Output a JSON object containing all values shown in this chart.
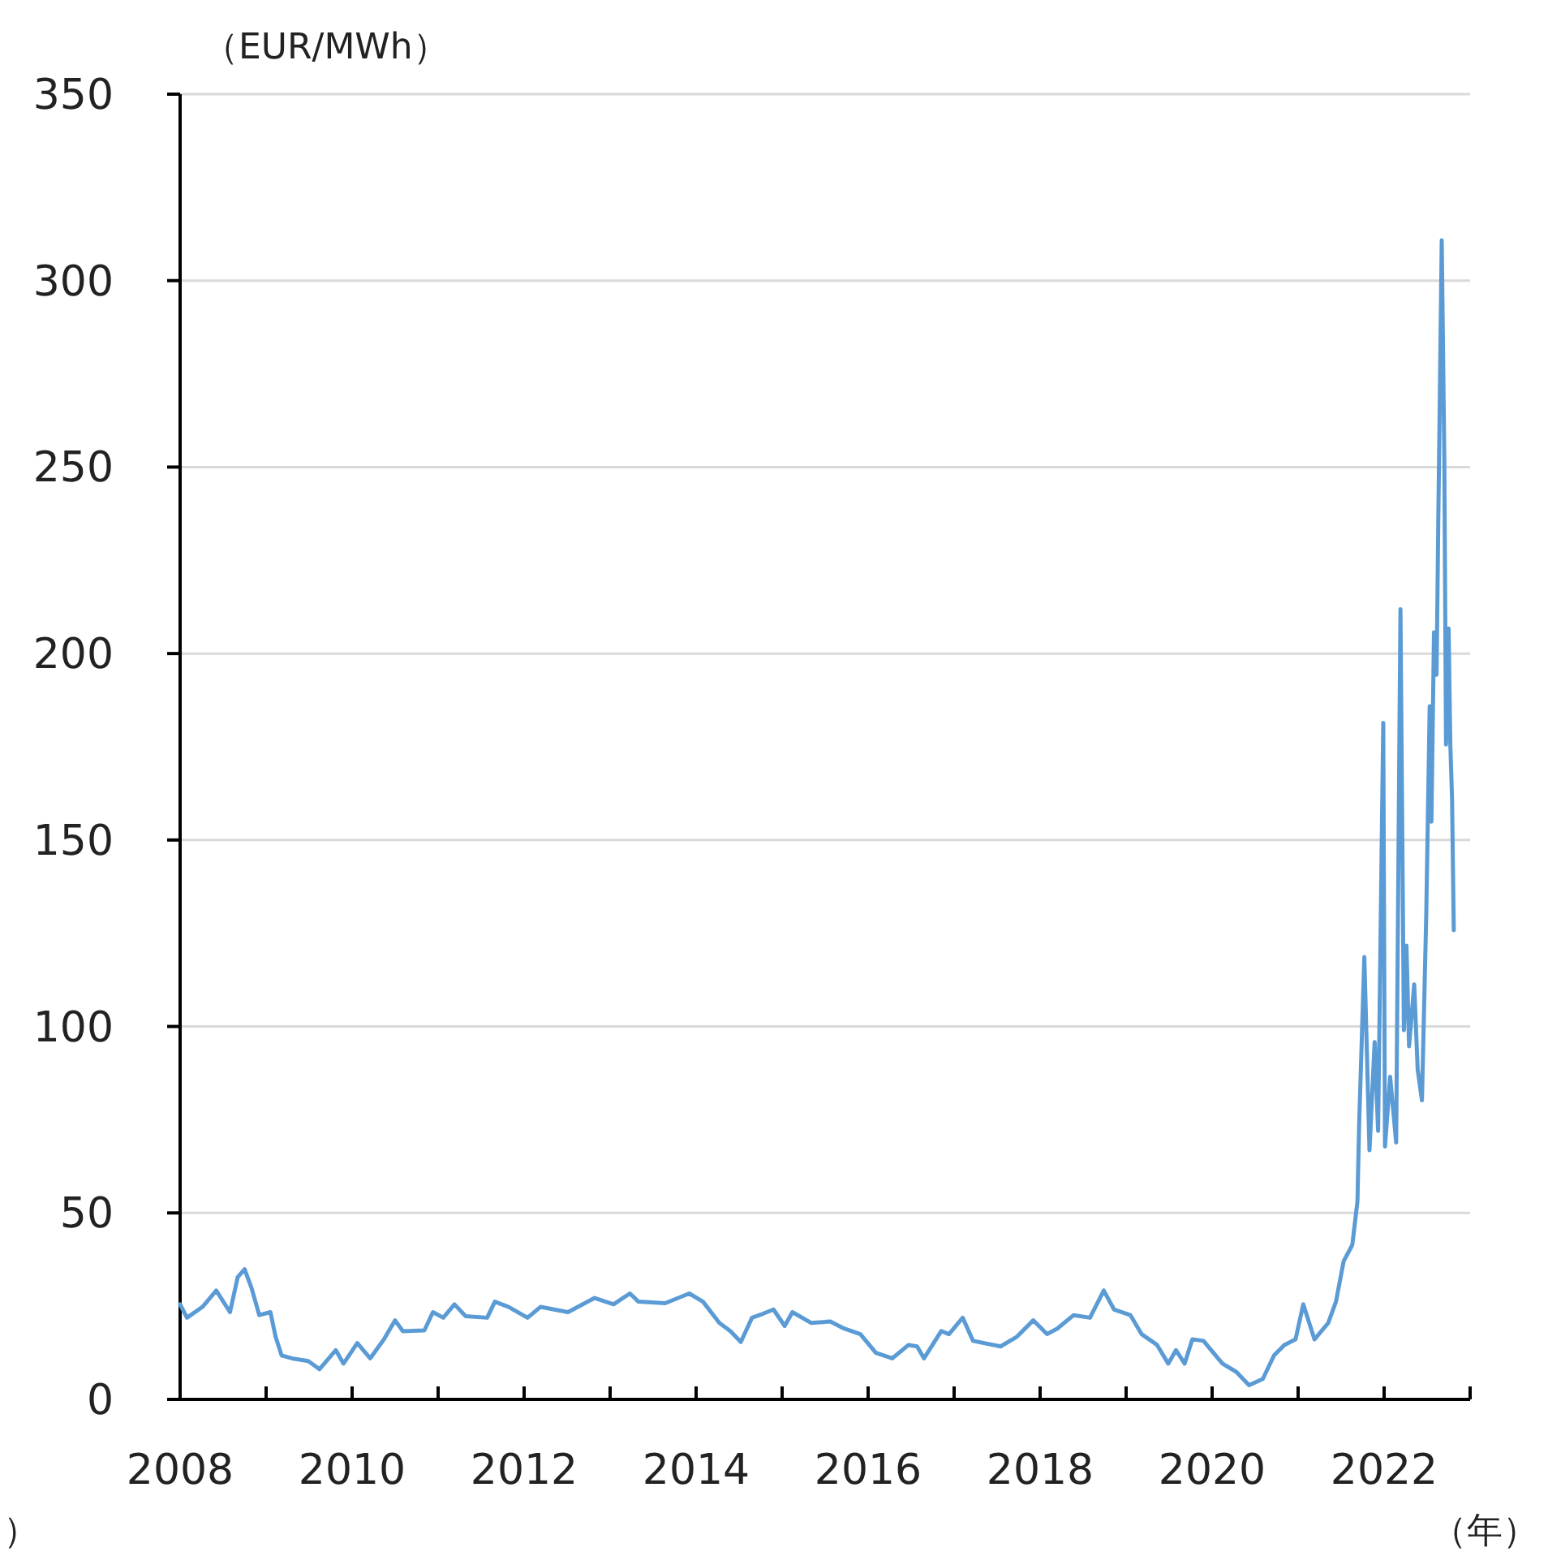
{
  "chart_data": {
    "type": "line",
    "ylabel": "（EUR/MWh）",
    "xlabel": "（年）",
    "annotations": [
      "）"
    ],
    "xlim": [
      2008,
      2023
    ],
    "xticks": [
      2008,
      {
        "value": 2009,
        "label": null
      },
      2010,
      {
        "value": 2011,
        "label": null
      },
      2012,
      {
        "value": 2013,
        "label": null
      },
      2014,
      {
        "value": 2015,
        "label": null
      },
      2016,
      {
        "value": 2017,
        "label": null
      },
      2018,
      {
        "value": 2019,
        "label": null
      },
      2020,
      {
        "value": 2021,
        "label": null
      },
      2022,
      {
        "value": 2023,
        "label": null
      }
    ],
    "ylim": [
      0,
      350
    ],
    "yticks": [
      0,
      50,
      100,
      150,
      200,
      250,
      300,
      350
    ],
    "grid": "y",
    "series": [
      {
        "color": "#5b9bd5",
        "x": [
          2008.0,
          2008.08,
          2008.26,
          2008.42,
          2008.58,
          2008.67,
          2008.75,
          2008.83,
          2008.92,
          2009.05,
          2009.11,
          2009.18,
          2009.3,
          2009.49,
          2009.62,
          2009.81,
          2009.9,
          2010.06,
          2010.21,
          2010.37,
          2010.5,
          2010.59,
          2010.84,
          2010.94,
          2011.06,
          2011.19,
          2011.32,
          2011.57,
          2011.66,
          2011.82,
          2012.04,
          2012.19,
          2012.51,
          2012.82,
          2013.04,
          2013.23,
          2013.33,
          2013.64,
          2013.92,
          2014.08,
          2014.27,
          2014.4,
          2014.52,
          2014.65,
          2014.77,
          2014.9,
          2015.03,
          2015.12,
          2015.34,
          2015.56,
          2015.72,
          2015.91,
          2016.09,
          2016.28,
          2016.47,
          2016.57,
          2016.65,
          2016.85,
          2016.94,
          2017.1,
          2017.22,
          2017.54,
          2017.73,
          2017.92,
          2018.08,
          2018.2,
          2018.39,
          2018.58,
          2018.74,
          2018.86,
          2019.05,
          2019.18,
          2019.36,
          2019.49,
          2019.58,
          2019.68,
          2019.77,
          2019.9,
          2019.99,
          2020.12,
          2020.28,
          2020.43,
          2020.59,
          2020.72,
          2020.84,
          2020.97,
          2021.06,
          2021.19,
          2021.35,
          2021.44,
          2021.53,
          2021.63,
          2021.69,
          2021.71,
          2021.77,
          2021.83,
          2021.89,
          2021.93,
          2021.99,
          2022.01,
          2022.07,
          2022.14,
          2022.19,
          2022.23,
          2022.26,
          2022.29,
          2022.35,
          2022.39,
          2022.44,
          2022.49,
          2022.53,
          2022.55,
          2022.58,
          2022.61,
          2022.63,
          2022.67,
          2022.7,
          2022.72,
          2022.75,
          2022.77,
          2022.79,
          2022.81
        ],
        "values": [
          25.5,
          21.9,
          24.8,
          29.2,
          23.4,
          32.8,
          34.9,
          29.9,
          22.6,
          23.4,
          16.8,
          11.8,
          11.0,
          10.3,
          8.1,
          13.2,
          9.6,
          15.1,
          11.0,
          16.1,
          21.2,
          18.3,
          18.5,
          23.4,
          21.9,
          25.5,
          22.3,
          21.9,
          26.2,
          24.8,
          21.9,
          24.8,
          23.4,
          27.2,
          25.5,
          28.4,
          26.2,
          25.8,
          28.4,
          26.2,
          20.5,
          18.3,
          15.4,
          21.9,
          22.9,
          24.1,
          19.7,
          23.4,
          20.5,
          20.9,
          19.0,
          17.5,
          12.5,
          11.0,
          14.6,
          14.2,
          11.0,
          18.3,
          17.5,
          21.9,
          15.7,
          14.2,
          16.8,
          21.2,
          17.5,
          19.0,
          22.6,
          21.9,
          29.2,
          24.1,
          22.6,
          17.5,
          14.6,
          9.6,
          13.2,
          9.6,
          16.1,
          15.7,
          13.2,
          9.6,
          7.4,
          3.8,
          5.5,
          11.8,
          14.6,
          16.1,
          25.5,
          16.1,
          20.5,
          26.2,
          37.1,
          41.4,
          53.1,
          74.0,
          118.6,
          66.8,
          95.8,
          72.0,
          181.4,
          67.8,
          86.5,
          68.9,
          211.9,
          99.0,
          121.7,
          94.7,
          111.3,
          88.5,
          80.2,
          130.0,
          185.9,
          154.9,
          205.7,
          194.3,
          235.7,
          310.8,
          252.3,
          175.6,
          206.7,
          175.6,
          161.1,
          125.8
        ]
      }
    ]
  }
}
